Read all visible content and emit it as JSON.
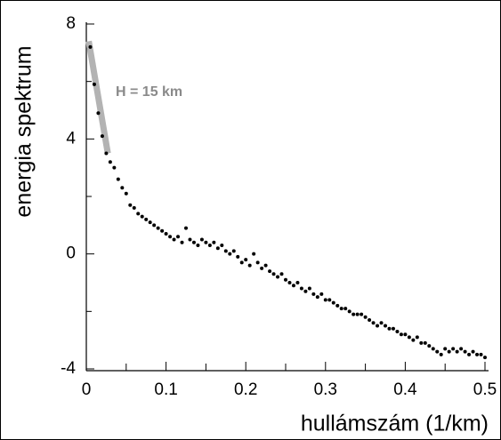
{
  "chart_data": {
    "type": "scatter",
    "x_label": "hullámszám (1/km)",
    "y_label": "energia spektrum",
    "annotation": "H = 15 km",
    "fit_line": {
      "x": [
        0.003,
        0.027
      ],
      "y": [
        7.4,
        3.5
      ],
      "color": "#b3b3b3"
    },
    "xlim": [
      0,
      0.5
    ],
    "ylim": [
      -4,
      8
    ],
    "xticks": [
      0,
      0.1,
      0.2,
      0.3,
      0.4,
      0.5
    ],
    "xminorticks": [
      0.05,
      0.15,
      0.25,
      0.35,
      0.45
    ],
    "yticks": [
      -4,
      0,
      4,
      8
    ],
    "yminorticks": [
      -2,
      2,
      6
    ],
    "color": "#000000",
    "x": [
      0.005,
      0.01,
      0.015,
      0.02,
      0.025,
      0.03,
      0.035,
      0.04,
      0.045,
      0.05,
      0.055,
      0.06,
      0.065,
      0.07,
      0.075,
      0.08,
      0.085,
      0.09,
      0.095,
      0.1,
      0.105,
      0.11,
      0.115,
      0.12,
      0.125,
      0.13,
      0.135,
      0.14,
      0.145,
      0.15,
      0.155,
      0.16,
      0.165,
      0.17,
      0.175,
      0.18,
      0.185,
      0.19,
      0.195,
      0.2,
      0.205,
      0.21,
      0.215,
      0.22,
      0.225,
      0.23,
      0.235,
      0.24,
      0.245,
      0.25,
      0.255,
      0.26,
      0.265,
      0.27,
      0.275,
      0.28,
      0.285,
      0.29,
      0.295,
      0.3,
      0.305,
      0.31,
      0.315,
      0.32,
      0.325,
      0.33,
      0.335,
      0.34,
      0.345,
      0.35,
      0.355,
      0.36,
      0.365,
      0.37,
      0.375,
      0.38,
      0.385,
      0.39,
      0.395,
      0.4,
      0.405,
      0.41,
      0.415,
      0.42,
      0.425,
      0.43,
      0.435,
      0.44,
      0.445,
      0.45,
      0.455,
      0.46,
      0.465,
      0.47,
      0.475,
      0.48,
      0.485,
      0.49,
      0.495,
      0.5
    ],
    "y": [
      7.2,
      5.9,
      4.9,
      4.1,
      3.5,
      3.2,
      3.0,
      2.6,
      2.3,
      2.1,
      1.7,
      1.6,
      1.4,
      1.3,
      1.2,
      1.1,
      1.0,
      0.9,
      0.8,
      0.7,
      0.6,
      0.5,
      0.6,
      0.4,
      0.9,
      0.5,
      0.4,
      0.3,
      0.5,
      0.4,
      0.3,
      0.4,
      0.2,
      0.3,
      0.1,
      0.0,
      0.1,
      -0.1,
      -0.3,
      -0.2,
      -0.4,
      0.0,
      -0.3,
      -0.5,
      -0.4,
      -0.6,
      -0.7,
      -0.8,
      -0.7,
      -0.9,
      -1.0,
      -1.1,
      -1.0,
      -1.2,
      -1.3,
      -1.2,
      -1.4,
      -1.5,
      -1.4,
      -1.6,
      -1.6,
      -1.7,
      -1.8,
      -1.9,
      -1.9,
      -2.0,
      -2.1,
      -2.1,
      -2.1,
      -2.2,
      -2.3,
      -2.4,
      -2.5,
      -2.4,
      -2.5,
      -2.6,
      -2.6,
      -2.7,
      -2.8,
      -2.8,
      -2.9,
      -3.0,
      -2.9,
      -3.1,
      -3.1,
      -3.2,
      -3.3,
      -3.4,
      -3.5,
      -3.3,
      -3.4,
      -3.3,
      -3.4,
      -3.3,
      -3.4,
      -3.5,
      -3.4,
      -3.5,
      -3.5,
      -3.6
    ]
  }
}
